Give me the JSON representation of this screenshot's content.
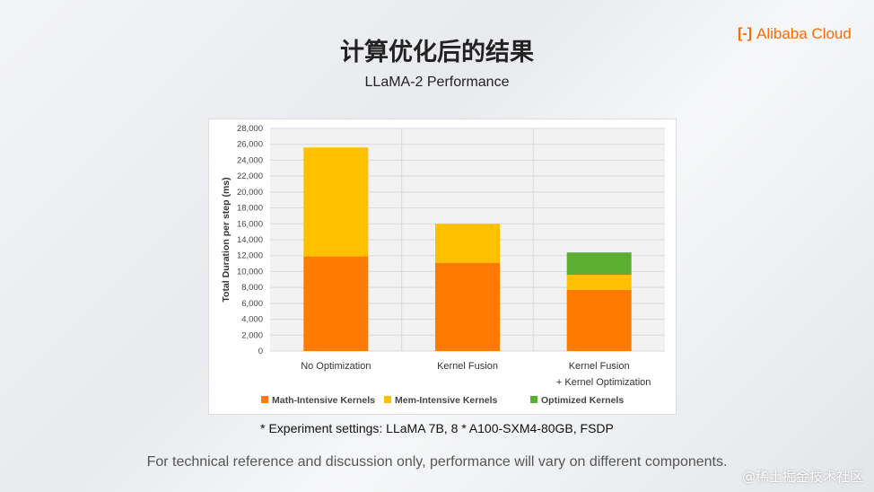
{
  "header": {
    "title": "计算优化后的结果",
    "subtitle": "LLaMA-2 Performance",
    "logo_text": "Alibaba Cloud"
  },
  "chart_data": {
    "type": "bar",
    "stacked": true,
    "categories": [
      [
        "No Optimization"
      ],
      [
        "Kernel Fusion"
      ],
      [
        "Kernel Fusion",
        "+ Kernel Optimization"
      ]
    ],
    "series": [
      {
        "name": "Math-Intensive Kernels",
        "color": "#ff7a00",
        "values": [
          11900,
          11100,
          7700
        ]
      },
      {
        "name": "Mem-Intensive Kernels",
        "color": "#ffc000",
        "values": [
          13700,
          4900,
          1900
        ]
      },
      {
        "name": "Optimized Kernels",
        "color": "#5aaf32",
        "values": [
          0,
          0,
          2800
        ]
      }
    ],
    "ylabel": "Total Duration per step (ms)",
    "ylim": [
      0,
      28000
    ],
    "yticks": [
      "0",
      "2,000",
      "4,000",
      "6,000",
      "8,000",
      "10,000",
      "12,000",
      "14,000",
      "16,000",
      "18,000",
      "20,000",
      "22,000",
      "24,000",
      "26,000",
      "28,000"
    ],
    "grid": true,
    "legend": "bottom"
  },
  "footer": {
    "note": "* Experiment settings: LLaMA 7B, 8 * A100-SXM4-80GB, FSDP",
    "disclaimer": "For technical reference and discussion only, performance will vary on different components.",
    "watermark": "@稀土掘金技术社区"
  }
}
